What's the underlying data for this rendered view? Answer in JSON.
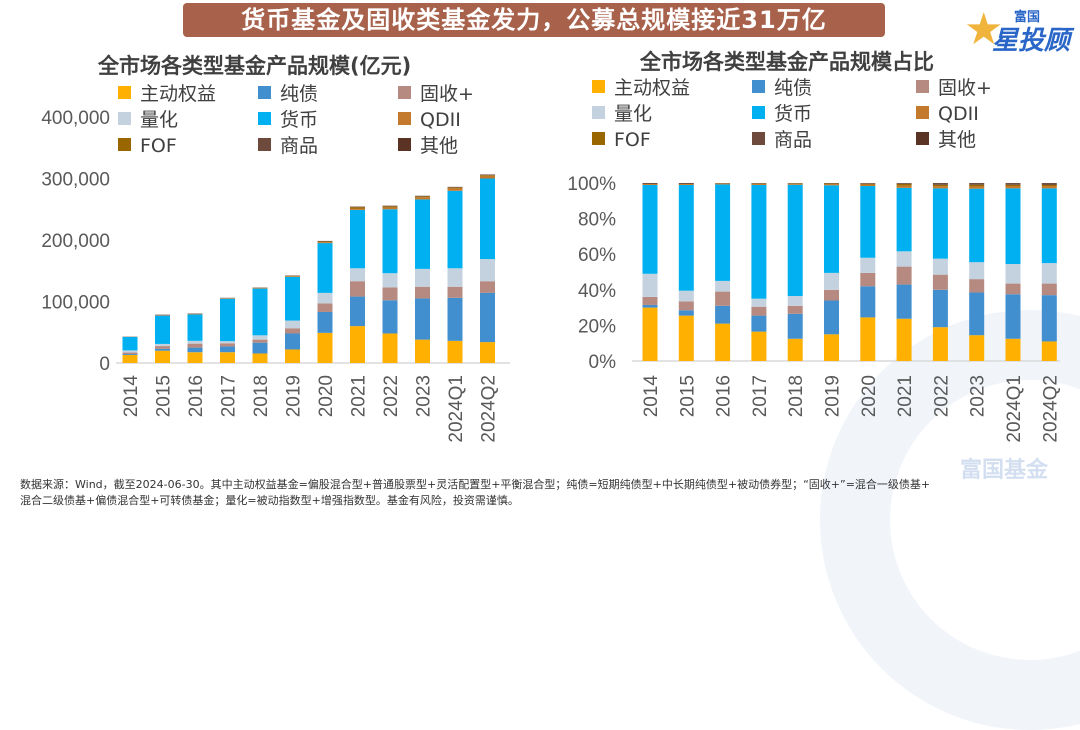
{
  "banner": {
    "title": "货币基金及固收类基金发力，公募总规模接近31万亿"
  },
  "logo": {
    "top": "富国",
    "main": "星投顾",
    "star_icon": "star-icon"
  },
  "watermark": "富国基金",
  "footnote": {
    "line1": "数据来源：Wind，截至2024-06-30。其中主动权益基金=偏股混合型+普通股票型+灵活配置型+平衡混合型；纯债=短期纯债型+中长期纯债型+被动债券型；“固收+”=混合一级债基+",
    "line2": "混合二级债基+偏债混合型+可转债基金；量化=被动指数型+增强指数型。基金有风险，投资需谨慎。"
  },
  "colors": {
    "主动权益": "#ffb000",
    "纯债": "#418fcf",
    "固收+": "#b68a80",
    "量化": "#c4d2e0",
    "货币": "#00b0f0",
    "QDII": "#c47a2c",
    "FOF": "#996600",
    "商品": "#6e4a3c",
    "其他": "#5a3324"
  },
  "chart_data": [
    {
      "type": "bar",
      "stacked": true,
      "title": "全市场各类型基金产品规模(亿元)",
      "xlabel": "",
      "ylabel": "",
      "ylim": [
        0,
        400000
      ],
      "yticks": [
        "0",
        "100,000",
        "200,000",
        "300,000",
        "400,000"
      ],
      "legend": [
        "主动权益",
        "纯债",
        "固收+",
        "量化",
        "货币",
        "QDII",
        "FOF",
        "商品",
        "其他"
      ],
      "legend_position": "top",
      "categories": [
        "2014",
        "2015",
        "2016",
        "2017",
        "2018",
        "2019",
        "2020",
        "2021",
        "2022",
        "2023",
        "2024Q1",
        "2024Q2"
      ],
      "series": [
        {
          "name": "主动权益",
          "values": [
            13000,
            20000,
            17500,
            17500,
            15500,
            22000,
            49000,
            60000,
            48000,
            38000,
            36000,
            34000
          ]
        },
        {
          "name": "纯债",
          "values": [
            1500,
            3000,
            7500,
            9500,
            17500,
            26000,
            34000,
            48000,
            54000,
            67000,
            70000,
            80000
          ]
        },
        {
          "name": "固收+",
          "values": [
            2500,
            4500,
            6500,
            5000,
            5000,
            8500,
            14000,
            25000,
            21000,
            19000,
            18000,
            19000
          ]
        },
        {
          "name": "量化",
          "values": [
            3500,
            3500,
            4500,
            3500,
            7000,
            12500,
            17000,
            21000,
            23000,
            29000,
            30000,
            36000
          ]
        },
        {
          "name": "货币",
          "values": [
            22000,
            46000,
            43000,
            69000,
            76000,
            71000,
            81000,
            95000,
            104000,
            113000,
            126000,
            131000
          ]
        },
        {
          "name": "QDII",
          "values": [
            400,
            600,
            800,
            800,
            800,
            1000,
            1400,
            2200,
            3000,
            3500,
            4000,
            4300
          ]
        },
        {
          "name": "FOF",
          "values": [
            0,
            0,
            100,
            200,
            500,
            700,
            1200,
            2200,
            1800,
            1400,
            1300,
            1200
          ]
        },
        {
          "name": "商品",
          "values": [
            100,
            150,
            200,
            200,
            200,
            300,
            400,
            400,
            500,
            500,
            600,
            700
          ]
        },
        {
          "name": "其他",
          "values": [
            100,
            800,
            500,
            300,
            300,
            400,
            500,
            600,
            500,
            500,
            500,
            500
          ]
        }
      ]
    },
    {
      "type": "bar",
      "stacked": true,
      "percent": true,
      "title": "全市场各类型基金产品规模占比",
      "xlabel": "",
      "ylabel": "",
      "ylim": [
        0,
        100
      ],
      "yticks": [
        "0%",
        "20%",
        "40%",
        "60%",
        "80%",
        "100%"
      ],
      "legend": [
        "主动权益",
        "纯债",
        "固收+",
        "量化",
        "货币",
        "QDII",
        "FOF",
        "商品",
        "其他"
      ],
      "legend_position": "top",
      "categories": [
        "2014",
        "2015",
        "2016",
        "2017",
        "2018",
        "2019",
        "2020",
        "2021",
        "2022",
        "2023",
        "2024Q1",
        "2024Q2"
      ],
      "series": [
        {
          "name": "主动权益",
          "values": [
            30,
            25.5,
            21,
            16.5,
            12.5,
            15,
            24.5,
            23.5,
            19,
            14.5,
            12.5,
            11
          ]
        },
        {
          "name": "纯债",
          "values": [
            1.5,
            3,
            10,
            9,
            14,
            19,
            17.5,
            19,
            21,
            24,
            25,
            26
          ]
        },
        {
          "name": "固收+",
          "values": [
            4.5,
            5,
            8,
            5,
            4.5,
            6,
            7.5,
            10,
            8.5,
            7.5,
            6,
            6.5
          ]
        },
        {
          "name": "量化",
          "values": [
            13,
            6,
            6,
            4.5,
            5.5,
            9.5,
            8.5,
            8.5,
            9,
            9.5,
            11,
            11.5
          ]
        },
        {
          "name": "货币",
          "values": [
            49.9,
            59.4,
            54.2,
            63.9,
            62.5,
            49.2,
            40.3,
            35.3,
            39.5,
            41.3,
            42.5,
            42
          ]
        },
        {
          "name": "QDII",
          "values": [
            0.6,
            0.6,
            0.5,
            0.6,
            0.5,
            0.7,
            0.8,
            1.2,
            1.2,
            1.3,
            1.3,
            1.3
          ]
        },
        {
          "name": "FOF",
          "values": [
            0,
            0,
            0.1,
            0.2,
            0.3,
            0.3,
            0.5,
            1.0,
            0.8,
            0.9,
            0.7,
            0.6
          ]
        },
        {
          "name": "商品",
          "values": [
            0.2,
            0.2,
            0.1,
            0.2,
            0.1,
            0.2,
            0.2,
            0.3,
            0.6,
            0.6,
            0.6,
            0.7
          ]
        },
        {
          "name": "其他",
          "values": [
            0.3,
            0.3,
            0.1,
            0.1,
            0.1,
            0.1,
            0.2,
            0.2,
            0.4,
            0.4,
            0.4,
            0.4
          ]
        }
      ]
    }
  ]
}
